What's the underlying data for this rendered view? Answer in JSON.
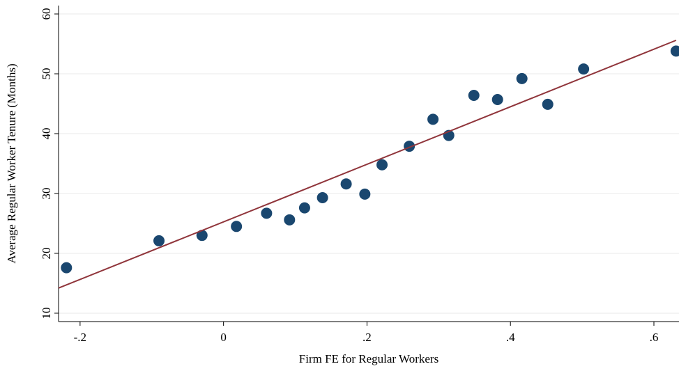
{
  "chart_data": {
    "type": "scatter",
    "x_label": "Firm FE for Regular Workers",
    "y_label": "Average Regular Worker Tenure (Months)",
    "x": [
      -0.219,
      -0.09,
      -0.03,
      0.018,
      0.06,
      0.092,
      0.113,
      0.138,
      0.171,
      0.197,
      0.221,
      0.259,
      0.292,
      0.314,
      0.349,
      0.382,
      0.416,
      0.452,
      0.502,
      0.631
    ],
    "values": [
      17.6,
      22.1,
      23.0,
      24.5,
      26.7,
      25.6,
      27.6,
      29.3,
      31.6,
      29.9,
      34.8,
      37.9,
      42.4,
      39.7,
      46.4,
      45.7,
      49.2,
      44.9,
      50.8,
      53.8
    ],
    "color": "#1a476f",
    "fit": {
      "x": [
        -0.23,
        0.631
      ],
      "values": [
        14.2,
        55.6
      ],
      "color": "#90353b"
    },
    "xlim": [
      -0.23,
      0.635
    ],
    "ylim": [
      8.6,
      61.4
    ],
    "xticks": [
      {
        "value": -0.2,
        "label": "-.2"
      },
      0,
      {
        "value": 0.2,
        "label": ".2"
      },
      {
        "value": 0.4,
        "label": ".4"
      },
      {
        "value": 0.6,
        "label": ".6"
      }
    ],
    "yticks": [
      10,
      20,
      30,
      40,
      50,
      60
    ],
    "grid": true
  }
}
